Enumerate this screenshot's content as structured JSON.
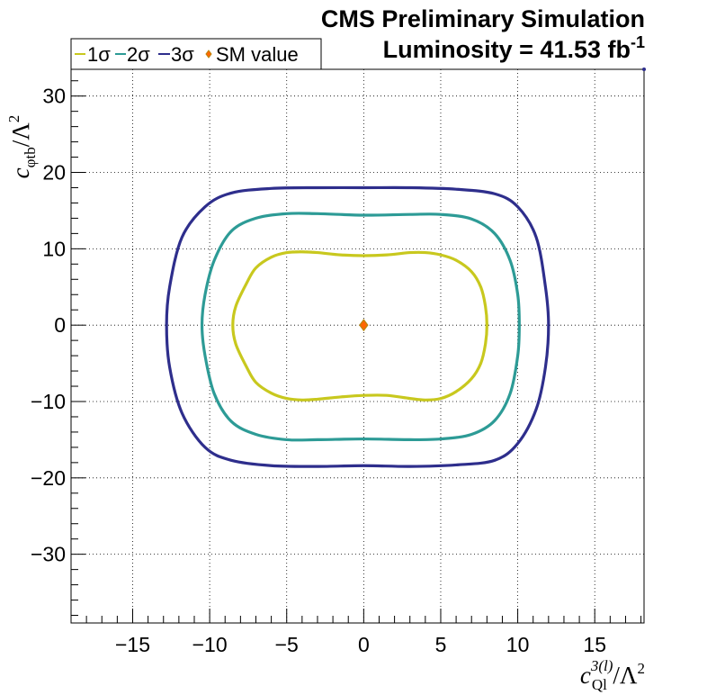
{
  "header": {
    "title": "CMS Preliminary Simulation",
    "lumi_prefix": "Luminosity = 41.53 fb",
    "lumi_exponent": "-1"
  },
  "chart_data": {
    "type": "line",
    "xlabel": {
      "symbol": "c",
      "subscript": "Ql",
      "superscript": "3(l)",
      "suffix": "/Λ",
      "power": "2"
    },
    "ylabel": {
      "symbol": "c",
      "subscript": "φtb",
      "suffix": "/Λ",
      "power": "2"
    },
    "xlim": [
      -19,
      18.2
    ],
    "ylim": [
      -39,
      33.5
    ],
    "grid": true,
    "x_ticks": [
      -15,
      -10,
      -5,
      0,
      5,
      10,
      15
    ],
    "x_tick_labels": [
      "−15",
      "−10",
      "−5",
      "0",
      "5",
      "10",
      "15"
    ],
    "y_ticks": [
      -30,
      -20,
      -10,
      0,
      10,
      20,
      30
    ],
    "y_tick_labels": [
      "−30",
      "−20",
      "−10",
      "0",
      "10",
      "20",
      "30"
    ],
    "legend_position": "top-left",
    "series": [
      {
        "name": "1σ",
        "color": "#c8c81e",
        "x": [
          0,
          1.5,
          3,
          4,
          5,
          6,
          7,
          7.6,
          7.9,
          8.0,
          7.9,
          7.6,
          7,
          6,
          5,
          4,
          3,
          1.5,
          0,
          -1.5,
          -3,
          -4,
          -5,
          -6,
          -7,
          -7.6,
          -8.3,
          -8.5,
          -8.3,
          -7.6,
          -7,
          -6,
          -5,
          -4,
          -3,
          -1.5,
          0
        ],
        "y": [
          9.1,
          9.2,
          9.5,
          9.5,
          9.2,
          8.5,
          7.0,
          5.0,
          2.5,
          0,
          -2.5,
          -5.0,
          -7.0,
          -8.7,
          -9.6,
          -9.8,
          -9.6,
          -9.2,
          -9.2,
          -9.4,
          -9.7,
          -9.8,
          -9.6,
          -8.9,
          -7.5,
          -5.5,
          -2.5,
          0,
          2.5,
          5.5,
          7.5,
          8.9,
          9.5,
          9.6,
          9.5,
          9.2,
          9.1
        ]
      },
      {
        "name": "2σ",
        "color": "#2d9b96",
        "x": [
          0,
          3,
          5,
          7,
          8.5,
          9.5,
          10.0,
          10.1,
          10.0,
          9.5,
          8.5,
          7,
          5,
          3,
          0,
          -3,
          -5,
          -7,
          -8.6,
          -9.7,
          -10.3,
          -10.5,
          -10.3,
          -9.7,
          -8.6,
          -7,
          -5,
          -3,
          0
        ],
        "y": [
          14.4,
          14.5,
          14.5,
          13.9,
          12.0,
          8.5,
          4.0,
          0,
          -4.0,
          -9.0,
          -12.5,
          -14.3,
          -14.9,
          -15.0,
          -14.9,
          -15.0,
          -15.0,
          -14.3,
          -12.6,
          -9.0,
          -4.0,
          0,
          4.0,
          8.5,
          12.3,
          14.0,
          14.6,
          14.6,
          14.4
        ]
      },
      {
        "name": "3σ",
        "color": "#2e2e8c",
        "x": [
          0,
          3,
          6,
          8.5,
          10,
          11.2,
          11.8,
          12.0,
          11.8,
          11.2,
          10,
          8.5,
          6,
          3,
          0,
          -3,
          -6,
          -8.6,
          -10.3,
          -11.8,
          -12.6,
          -12.8,
          -12.6,
          -11.8,
          -10.3,
          -8.6,
          -6,
          -3,
          0
        ],
        "y": [
          18.0,
          18.0,
          17.8,
          17.2,
          15.5,
          11.5,
          5.0,
          0,
          -5.5,
          -11.0,
          -15.5,
          -17.7,
          -18.3,
          -18.5,
          -18.4,
          -18.5,
          -18.4,
          -17.7,
          -16.0,
          -11.5,
          -5.5,
          0,
          5.0,
          11.5,
          15.5,
          17.3,
          17.9,
          18.0,
          18.0
        ]
      },
      {
        "name": "SM value",
        "color": "#ff6600",
        "edge_color": "#b8860b",
        "marker": "diamond",
        "x": [
          0
        ],
        "y": [
          0
        ]
      }
    ]
  }
}
